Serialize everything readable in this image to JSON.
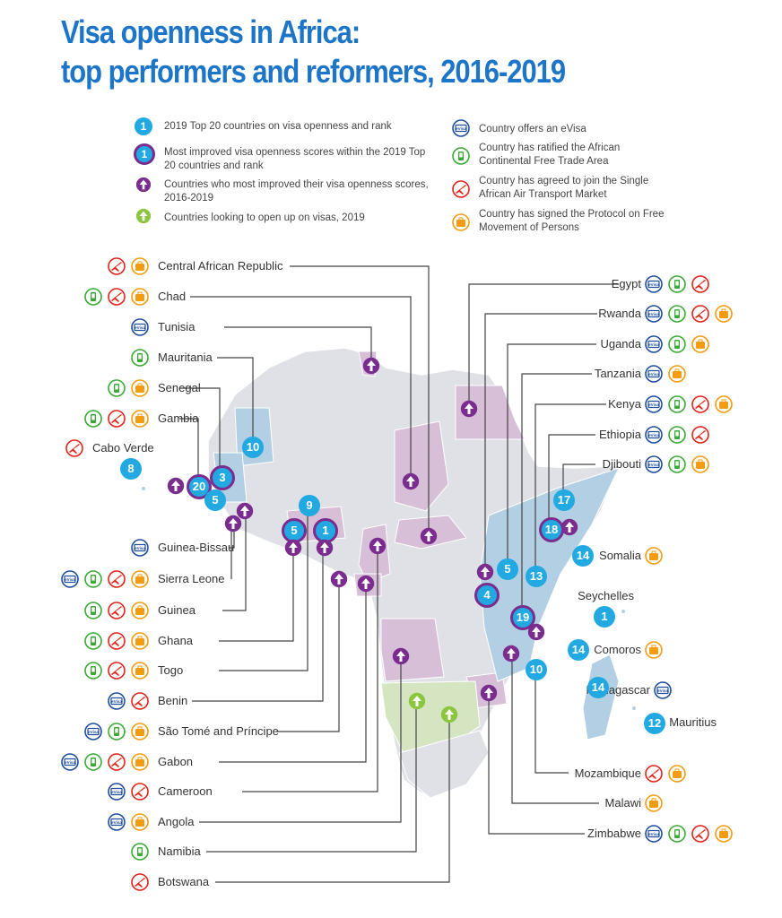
{
  "title": {
    "line1": "Visa openness in Africa:",
    "line2": "top performers and reformers, 2016-2019"
  },
  "legend": {
    "rank": "2019 Top 20 countries on visa openness and rank",
    "rank_badge": "1",
    "improved_rank": "Most improved visa openness scores within the 2019 Top 20 countries and rank",
    "improved_badge": "1",
    "improved": "Countries who most improved their visa openness scores, 2016-2019",
    "opening": "Countries looking to open up on visas, 2019",
    "evisa": "Country offers an eVisa",
    "afcfta": "Country has ratified the African Continental Free Trade Area",
    "saatm": "Country has agreed to join the Single African Air Transport Market",
    "fmp": "Country  has signed the Protocol on Free Movement of Persons",
    "evisa_icon_text": "eVisa"
  },
  "colors": {
    "title": "#1d75c7",
    "rank": "#22a9e1",
    "improved": "#7b2c8f",
    "opening": "#8cc63f",
    "evisa": "#1f4e9c",
    "afcfta": "#3aaa35",
    "saatm": "#e2231a",
    "fmp": "#f39c12",
    "map_base": "#dfe1e6",
    "map_purple": "#d7bfd8",
    "map_blue": "#b3cfe3",
    "map_green": "#d5e5c1"
  },
  "left_countries": [
    {
      "name": "Central African Republic",
      "icons": [
        "saatm",
        "fmp"
      ]
    },
    {
      "name": "Chad",
      "icons": [
        "afcfta",
        "saatm",
        "fmp"
      ]
    },
    {
      "name": "Tunisia",
      "icons": [
        "evisa"
      ]
    },
    {
      "name": "Mauritania",
      "icons": [
        "afcfta"
      ]
    },
    {
      "name": "Senegal",
      "icons": [
        "afcfta",
        "fmp"
      ]
    },
    {
      "name": "Gambia",
      "icons": [
        "afcfta",
        "saatm",
        "fmp"
      ]
    },
    {
      "name": "Cabo Verde",
      "icons": [
        "saatm"
      ]
    },
    {
      "name": "Guinea-Bissau",
      "icons": [
        "evisa"
      ]
    },
    {
      "name": "Sierra Leone",
      "icons": [
        "evisa",
        "afcfta",
        "saatm",
        "fmp"
      ]
    },
    {
      "name": "Guinea",
      "icons": [
        "afcfta",
        "saatm",
        "fmp"
      ]
    },
    {
      "name": "Ghana",
      "icons": [
        "afcfta",
        "saatm",
        "fmp"
      ]
    },
    {
      "name": "Togo",
      "icons": [
        "afcfta",
        "saatm",
        "fmp"
      ]
    },
    {
      "name": "Benin",
      "icons": [
        "evisa",
        "saatm"
      ]
    },
    {
      "name": "São Tomé and Príncipe",
      "icons": [
        "evisa",
        "afcfta",
        "fmp"
      ]
    },
    {
      "name": "Gabon",
      "icons": [
        "evisa",
        "afcfta",
        "saatm",
        "fmp"
      ]
    },
    {
      "name": "Cameroon",
      "icons": [
        "evisa",
        "saatm"
      ]
    },
    {
      "name": "Angola",
      "icons": [
        "evisa",
        "fmp"
      ]
    },
    {
      "name": "Namibia",
      "icons": [
        "afcfta"
      ]
    },
    {
      "name": "Botswana",
      "icons": [
        "saatm"
      ]
    }
  ],
  "right_countries": [
    {
      "name": "Egypt",
      "icons": [
        "evisa",
        "afcfta",
        "saatm"
      ]
    },
    {
      "name": "Rwanda",
      "icons": [
        "evisa",
        "afcfta",
        "saatm",
        "fmp"
      ]
    },
    {
      "name": "Uganda",
      "icons": [
        "evisa",
        "afcfta",
        "fmp"
      ]
    },
    {
      "name": "Tanzania",
      "icons": [
        "evisa",
        "fmp"
      ]
    },
    {
      "name": "Kenya",
      "icons": [
        "evisa",
        "afcfta",
        "saatm",
        "fmp"
      ]
    },
    {
      "name": "Ethiopia",
      "icons": [
        "evisa",
        "afcfta",
        "saatm"
      ]
    },
    {
      "name": "Djibouti",
      "icons": [
        "evisa",
        "afcfta",
        "fmp"
      ]
    },
    {
      "name": "Somalia",
      "icons": [
        "fmp"
      ]
    },
    {
      "name": "Seychelles",
      "icons": []
    },
    {
      "name": "Comoros",
      "icons": [
        "fmp"
      ]
    },
    {
      "name": "Madagascar",
      "icons": [
        "evisa"
      ]
    },
    {
      "name": "Mauritius",
      "icons": []
    },
    {
      "name": "Mozambique",
      "icons": [
        "saatm",
        "fmp"
      ]
    },
    {
      "name": "Malawi",
      "icons": [
        "fmp"
      ]
    },
    {
      "name": "Zimbabwe",
      "icons": [
        "evisa",
        "afcfta",
        "saatm",
        "fmp"
      ]
    }
  ],
  "ranks": [
    {
      "value": "10",
      "country": "Mauritania",
      "improved": false
    },
    {
      "value": "8",
      "country": "Cabo Verde",
      "improved": false
    },
    {
      "value": "20",
      "country": "Senegal",
      "improved": true
    },
    {
      "value": "3",
      "country": "Gambia",
      "improved": true
    },
    {
      "value": "5",
      "country": "Guinea-Bissau",
      "improved": false
    },
    {
      "value": "9",
      "country": "Togo",
      "improved": false
    },
    {
      "value": "5",
      "country": "Ghana",
      "improved": true
    },
    {
      "value": "1",
      "country": "Benin",
      "improved": true
    },
    {
      "value": "17",
      "country": "Djibouti",
      "improved": false
    },
    {
      "value": "18",
      "country": "Ethiopia",
      "improved": true
    },
    {
      "value": "14",
      "country": "Somalia",
      "improved": false
    },
    {
      "value": "5",
      "country": "Uganda",
      "improved": false
    },
    {
      "value": "13",
      "country": "Kenya",
      "improved": false
    },
    {
      "value": "4",
      "country": "Rwanda",
      "improved": true
    },
    {
      "value": "19",
      "country": "Tanzania",
      "improved": true
    },
    {
      "value": "10",
      "country": "Mozambique",
      "improved": false
    },
    {
      "value": "1",
      "country": "Seychelles",
      "improved": false
    },
    {
      "value": "14",
      "country": "Comoros",
      "improved": false
    },
    {
      "value": "14",
      "country": "Madagascar",
      "improved": false
    },
    {
      "value": "12",
      "country": "Mauritius",
      "improved": false
    }
  ]
}
